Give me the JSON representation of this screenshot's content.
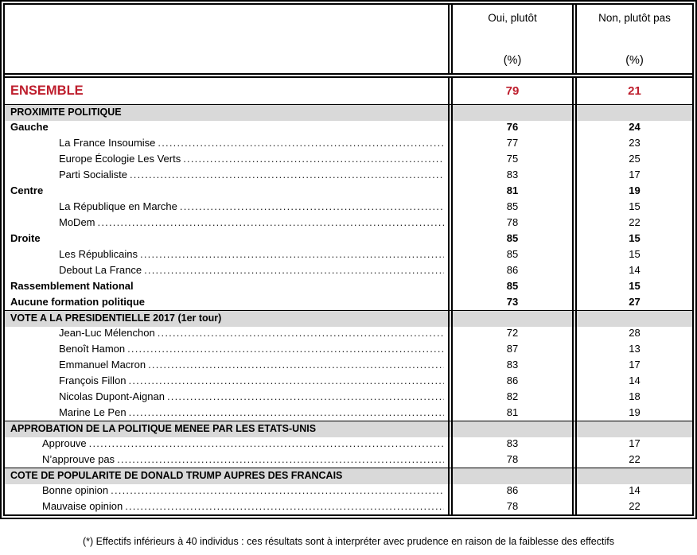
{
  "header": {
    "oui": {
      "label": "Oui, plutôt",
      "unit": "(%)"
    },
    "non": {
      "label": "Non, plutôt pas",
      "unit": "(%)"
    }
  },
  "ensemble": {
    "label": "ENSEMBLE",
    "oui": "79",
    "non": "21"
  },
  "sections": [
    {
      "title": "PROXIMITE POLITIQUE",
      "rows": [
        {
          "label": "Gauche",
          "oui": "76",
          "non": "24",
          "style": "category-bold"
        },
        {
          "label": "La France Insoumise",
          "oui": "77",
          "non": "23",
          "style": "sub"
        },
        {
          "label": "Europe Écologie Les Verts",
          "oui": "75",
          "non": "25",
          "style": "sub"
        },
        {
          "label": "Parti Socialiste",
          "oui": "83",
          "non": "17",
          "style": "sub"
        },
        {
          "label": "Centre",
          "oui": "81",
          "non": "19",
          "style": "category-bold"
        },
        {
          "label": "La République en Marche",
          "oui": "85",
          "non": "15",
          "style": "sub"
        },
        {
          "label": "MoDem",
          "oui": "78",
          "non": "22",
          "style": "sub"
        },
        {
          "label": "Droite",
          "oui": "85",
          "non": "15",
          "style": "category-bold"
        },
        {
          "label": "Les Républicains",
          "oui": "85",
          "non": "15",
          "style": "sub"
        },
        {
          "label": "Debout La France",
          "oui": "86",
          "non": "14",
          "style": "sub"
        },
        {
          "label": "Rassemblement National",
          "oui": "85",
          "non": "15",
          "style": "category-bold"
        },
        {
          "label": "Aucune formation politique",
          "oui": "73",
          "non": "27",
          "style": "category-bold"
        }
      ]
    },
    {
      "title": "VOTE A LA PRESIDENTIELLE 2017 (1er tour)",
      "rows": [
        {
          "label": "Jean-Luc Mélenchon",
          "oui": "72",
          "non": "28",
          "style": "sub"
        },
        {
          "label": "Benoît Hamon",
          "oui": "87",
          "non": "13",
          "style": "sub"
        },
        {
          "label": "Emmanuel Macron",
          "oui": "83",
          "non": "17",
          "style": "sub"
        },
        {
          "label": "François Fillon",
          "oui": "86",
          "non": "14",
          "style": "sub"
        },
        {
          "label": "Nicolas Dupont-Aignan",
          "oui": "82",
          "non": "18",
          "style": "sub"
        },
        {
          "label": "Marine Le Pen",
          "oui": "81",
          "non": "19",
          "style": "sub"
        }
      ]
    },
    {
      "title": "APPROBATION DE LA POLITIQUE MENEE PAR LES ETATS-UNIS",
      "rows": [
        {
          "label": "Approuve",
          "oui": "83",
          "non": "17",
          "style": "sub"
        },
        {
          "label": "N’approuve pas",
          "oui": "78",
          "non": "22",
          "style": "sub"
        }
      ]
    },
    {
      "title": "COTE DE POPULARITE DE DONALD TRUMP AUPRES DES FRANCAIS",
      "rows": [
        {
          "label": "Bonne opinion",
          "oui": "86",
          "non": "14",
          "style": "sub"
        },
        {
          "label": "Mauvaise opinion",
          "oui": "78",
          "non": "22",
          "style": "sub"
        }
      ]
    }
  ],
  "footnote": "(*) Effectifs inférieurs à 40 individus : ces résultats sont à interpréter avec prudence en raison de la faiblesse des effectifs",
  "colors": {
    "accent_red": "#BE1E2D",
    "band_gray": "#D9D9D9",
    "border_black": "#000000"
  }
}
